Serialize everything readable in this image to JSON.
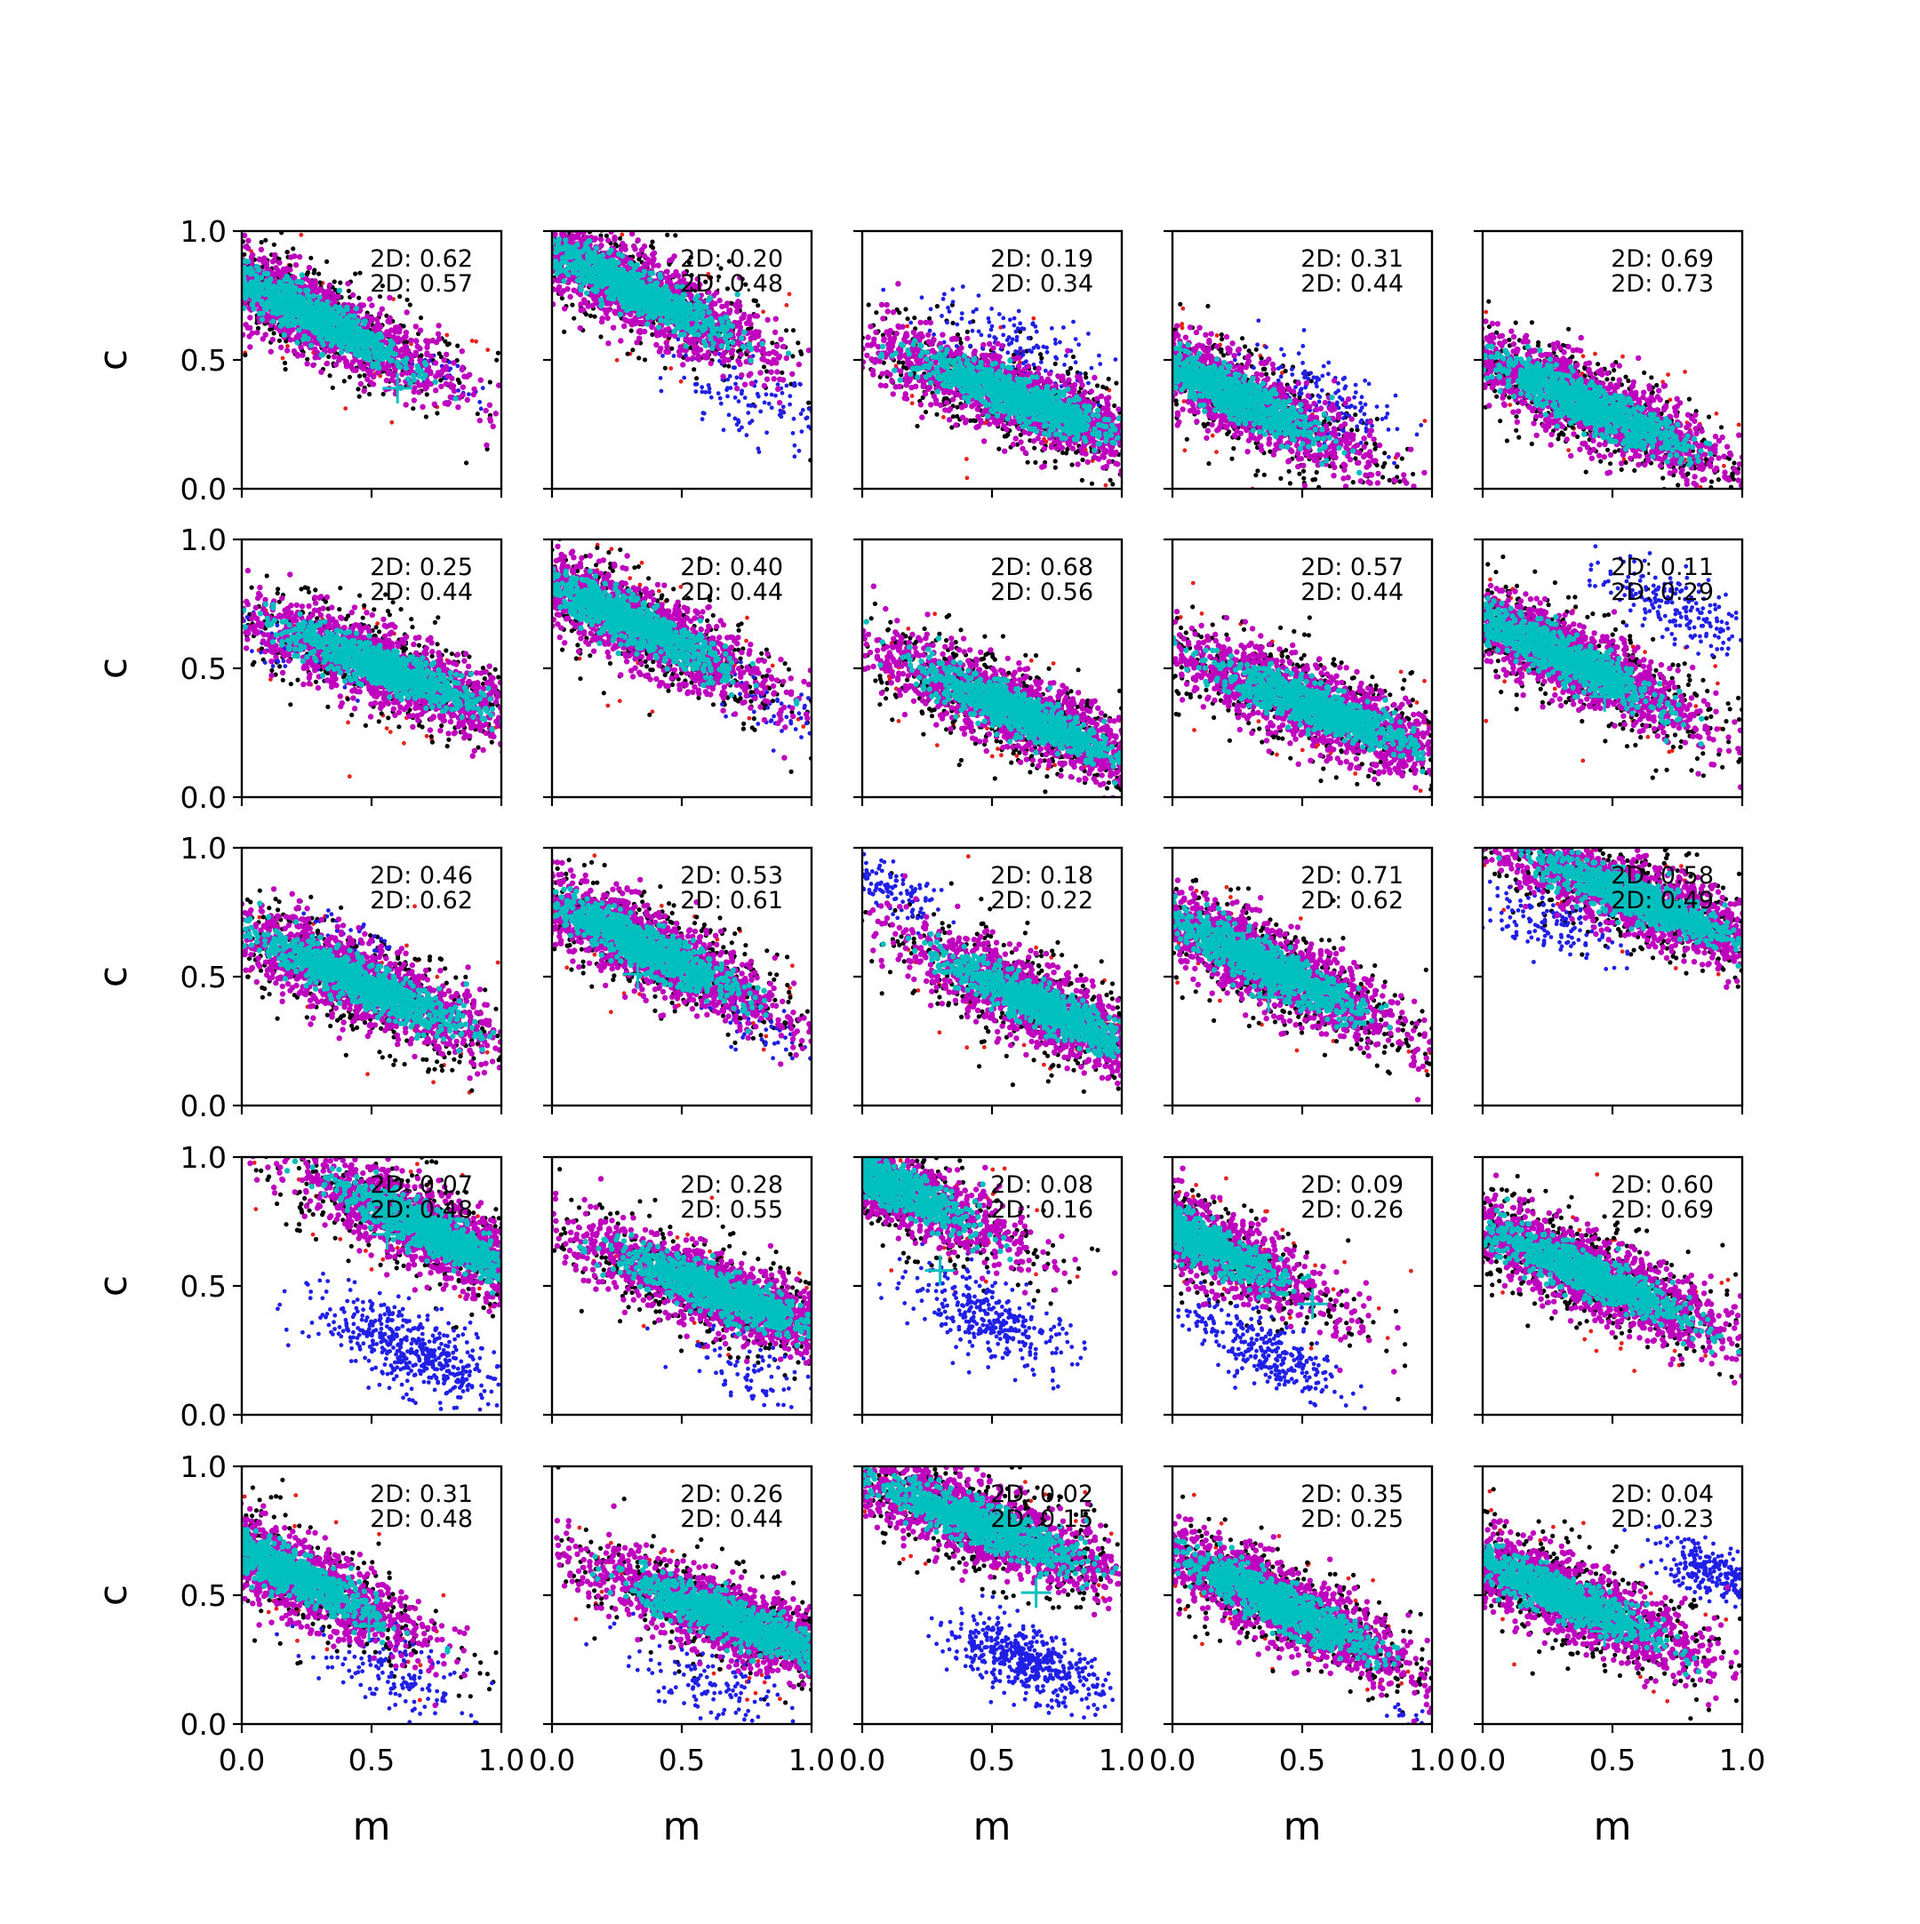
{
  "chart_data": {
    "type": "scatter",
    "layout": "5x5 grid of subplots",
    "xlabel": "m",
    "ylabel": "c",
    "xlim": [
      0,
      1
    ],
    "ylim": [
      0,
      1
    ],
    "xticks": [
      "0.0",
      "0.5",
      "1.0"
    ],
    "yticks": [
      "0.0",
      "0.5",
      "1.0"
    ],
    "grid": false,
    "series_colors": {
      "outer_red": "#e8221a",
      "black": "#000000",
      "blue": "#1f1fe6",
      "magenta": "#bf00bf",
      "cyan": "#00bfbf",
      "marker": "#00bfbf"
    },
    "marker_symbol": "+",
    "panels": [
      {
        "row": 0,
        "col": 0,
        "stat1": "2D: 0.62",
        "stat2": "2D: 0.57",
        "slope": -0.5,
        "main": {
          "cx": 0.25,
          "cy": 0.68
        },
        "blue": {
          "cx": 0.75,
          "cy": 0.44,
          "n": 35,
          "spread": 0.7
        },
        "marker": {
          "x": 0.6,
          "y": 0.39
        }
      },
      {
        "row": 0,
        "col": 1,
        "stat1": "2D: 0.20",
        "stat2": "2D: 0.48",
        "slope": -0.5,
        "main": {
          "cx": 0.3,
          "cy": 0.78
        },
        "blue": {
          "cx": 0.78,
          "cy": 0.33,
          "n": 120,
          "spread": 1.1
        },
        "marker": {
          "x": 0.5,
          "y": 0.7
        }
      },
      {
        "row": 0,
        "col": 2,
        "stat1": "2D: 0.19",
        "stat2": "2D: 0.34",
        "slope": -0.4,
        "main": {
          "cx": 0.6,
          "cy": 0.35
        },
        "blue": {
          "cx": 0.6,
          "cy": 0.55,
          "n": 140,
          "spread": 1.2
        },
        "marker": null
      },
      {
        "row": 0,
        "col": 3,
        "stat1": "2D: 0.31",
        "stat2": "2D: 0.44",
        "slope": -0.5,
        "main": {
          "cx": 0.2,
          "cy": 0.38
        },
        "blue": {
          "cx": 0.6,
          "cy": 0.36,
          "n": 140,
          "spread": 1.1
        },
        "marker": {
          "x": 0.35,
          "y": 0.27
        }
      },
      {
        "row": 0,
        "col": 4,
        "stat1": "2D: 0.69",
        "stat2": "2D: 0.73",
        "slope": -0.45,
        "main": {
          "cx": 0.4,
          "cy": 0.33
        },
        "blue": null,
        "marker": null
      },
      {
        "row": 1,
        "col": 0,
        "stat1": "2D: 0.25",
        "stat2": "2D: 0.44",
        "slope": -0.4,
        "main": {
          "cx": 0.55,
          "cy": 0.5
        },
        "blue": {
          "cx": 0.2,
          "cy": 0.58,
          "n": 70,
          "spread": 0.8
        },
        "marker": null
      },
      {
        "row": 1,
        "col": 1,
        "stat1": "2D: 0.40",
        "stat2": "2D: 0.44",
        "slope": -0.5,
        "main": {
          "cx": 0.3,
          "cy": 0.68
        },
        "blue": {
          "cx": 0.85,
          "cy": 0.35,
          "n": 60,
          "spread": 0.8
        },
        "marker": null
      },
      {
        "row": 1,
        "col": 2,
        "stat1": "2D: 0.68",
        "stat2": "2D: 0.56",
        "slope": -0.45,
        "main": {
          "cx": 0.6,
          "cy": 0.33
        },
        "blue": null,
        "marker": null
      },
      {
        "row": 1,
        "col": 3,
        "stat1": "2D: 0.57",
        "stat2": "2D: 0.44",
        "slope": -0.4,
        "main": {
          "cx": 0.55,
          "cy": 0.35
        },
        "blue": null,
        "marker": null
      },
      {
        "row": 1,
        "col": 4,
        "stat1": "2D: 0.11",
        "stat2": "2D: 0.29",
        "slope": -0.5,
        "main": {
          "cx": 0.3,
          "cy": 0.55
        },
        "blue": {
          "cx": 0.75,
          "cy": 0.74,
          "n": 200,
          "spread": 1.0
        },
        "marker": {
          "x": 0.47,
          "y": 0.39
        }
      },
      {
        "row": 2,
        "col": 0,
        "stat1": "2D: 0.46",
        "stat2": "2D: 0.62",
        "slope": -0.45,
        "main": {
          "cx": 0.45,
          "cy": 0.48
        },
        "blue": {
          "cx": 0.4,
          "cy": 0.68,
          "n": 30,
          "spread": 0.6
        },
        "marker": null
      },
      {
        "row": 2,
        "col": 1,
        "stat1": "2D: 0.53",
        "stat2": "2D: 0.61",
        "slope": -0.5,
        "main": {
          "cx": 0.35,
          "cy": 0.62
        },
        "blue": {
          "cx": 0.8,
          "cy": 0.3,
          "n": 50,
          "spread": 0.8
        },
        "marker": {
          "x": 0.33,
          "y": 0.51
        }
      },
      {
        "row": 2,
        "col": 2,
        "stat1": "2D: 0.18",
        "stat2": "2D: 0.22",
        "slope": -0.5,
        "main": {
          "cx": 0.7,
          "cy": 0.38
        },
        "blue": {
          "cx": 0.08,
          "cy": 0.85,
          "n": 140,
          "spread": 0.7
        },
        "marker": {
          "x": 0.63,
          "y": 0.39
        }
      },
      {
        "row": 2,
        "col": 3,
        "stat1": "2D: 0.71",
        "stat2": "2D: 0.62",
        "slope": -0.5,
        "main": {
          "cx": 0.35,
          "cy": 0.55
        },
        "blue": null,
        "marker": {
          "x": 0.37,
          "y": 0.42
        }
      },
      {
        "row": 2,
        "col": 4,
        "stat1": "2D: 0.58",
        "stat2": "2D: 0.49",
        "slope": -0.4,
        "main": {
          "cx": 0.6,
          "cy": 0.8
        },
        "blue": {
          "cx": 0.25,
          "cy": 0.72,
          "n": 150,
          "spread": 1.0
        },
        "marker": null
      },
      {
        "row": 3,
        "col": 0,
        "stat1": "2D: 0.07",
        "stat2": "2D: 0.48",
        "slope": -0.5,
        "main": {
          "cx": 0.75,
          "cy": 0.7
        },
        "blue": {
          "cx": 0.65,
          "cy": 0.25,
          "n": 500,
          "spread": 1.2
        },
        "marker": {
          "x": 0.56,
          "y": 0.7
        }
      },
      {
        "row": 3,
        "col": 1,
        "stat1": "2D: 0.28",
        "stat2": "2D: 0.55",
        "slope": -0.4,
        "main": {
          "cx": 0.65,
          "cy": 0.47
        },
        "blue": {
          "cx": 0.8,
          "cy": 0.15,
          "n": 80,
          "spread": 1.0
        },
        "marker": null
      },
      {
        "row": 3,
        "col": 2,
        "stat1": "2D: 0.08",
        "stat2": "2D: 0.16",
        "slope": -0.5,
        "main": {
          "cx": 0.05,
          "cy": 0.92
        },
        "blue": {
          "cx": 0.5,
          "cy": 0.37,
          "n": 320,
          "spread": 1.1
        },
        "marker": {
          "x": 0.3,
          "y": 0.56
        }
      },
      {
        "row": 3,
        "col": 3,
        "stat1": "2D: 0.09",
        "stat2": "2D: 0.26",
        "slope": -0.5,
        "main": {
          "cx": 0.05,
          "cy": 0.7
        },
        "blue": {
          "cx": 0.35,
          "cy": 0.25,
          "n": 300,
          "spread": 1.0
        },
        "marker": {
          "x": 0.54,
          "y": 0.43
        }
      },
      {
        "row": 3,
        "col": 4,
        "stat1": "2D: 0.60",
        "stat2": "2D: 0.69",
        "slope": -0.45,
        "main": {
          "cx": 0.4,
          "cy": 0.55
        },
        "blue": null,
        "marker": null
      },
      {
        "row": 4,
        "col": 0,
        "stat1": "2D: 0.31",
        "stat2": "2D: 0.48",
        "slope": -0.5,
        "main": {
          "cx": 0.15,
          "cy": 0.6
        },
        "blue": {
          "cx": 0.6,
          "cy": 0.2,
          "n": 160,
          "spread": 1.1
        },
        "marker": {
          "x": 0.49,
          "y": 0.38
        }
      },
      {
        "row": 4,
        "col": 1,
        "stat1": "2D: 0.26",
        "stat2": "2D: 0.44",
        "slope": -0.4,
        "main": {
          "cx": 0.7,
          "cy": 0.4
        },
        "blue": {
          "cx": 0.6,
          "cy": 0.15,
          "n": 130,
          "spread": 1.1
        },
        "marker": {
          "x": 0.4,
          "y": 0.47
        }
      },
      {
        "row": 4,
        "col": 2,
        "stat1": "2D: 0.02",
        "stat2": "2D: 0.15",
        "slope": -0.4,
        "main": {
          "cx": 0.45,
          "cy": 0.78
        },
        "blue": {
          "cx": 0.62,
          "cy": 0.25,
          "n": 500,
          "spread": 1.0
        },
        "marker": {
          "x": 0.67,
          "y": 0.51
        }
      },
      {
        "row": 4,
        "col": 3,
        "stat1": "2D: 0.35",
        "stat2": "2D: 0.25",
        "slope": -0.5,
        "main": {
          "cx": 0.4,
          "cy": 0.47
        },
        "blue": {
          "cx": 0.9,
          "cy": 0.03,
          "n": 20,
          "spread": 0.5
        },
        "marker": null
      },
      {
        "row": 4,
        "col": 4,
        "stat1": "2D: 0.04",
        "stat2": "2D: 0.23",
        "slope": -0.45,
        "main": {
          "cx": 0.3,
          "cy": 0.5
        },
        "blue": {
          "cx": 0.9,
          "cy": 0.58,
          "n": 260,
          "spread": 0.8
        },
        "marker": {
          "x": 0.47,
          "y": 0.36
        }
      }
    ]
  }
}
